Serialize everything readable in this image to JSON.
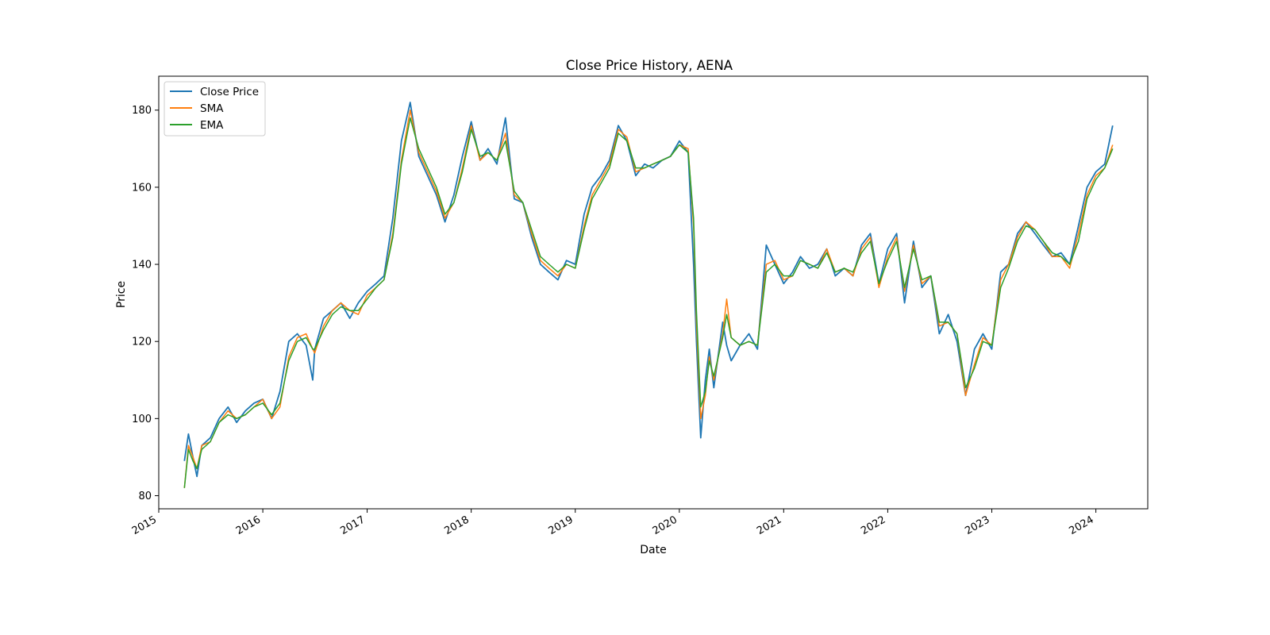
{
  "chart_data": {
    "type": "line",
    "title": "Close Price History, AENA",
    "xlabel": "Date",
    "ylabel": "Price",
    "x_ticks": [
      "2015",
      "2016",
      "2017",
      "2018",
      "2019",
      "2020",
      "2021",
      "2022",
      "2023",
      "2024"
    ],
    "y_ticks": [
      80,
      100,
      120,
      140,
      160,
      180
    ],
    "xlim": [
      "2015-01-01",
      "2024-07-01"
    ],
    "ylim": [
      76.6,
      188.8
    ],
    "legend_position": "top-left",
    "grid": false,
    "x": [
      "2015-04-01",
      "2015-04-15",
      "2015-05-01",
      "2015-05-15",
      "2015-06-01",
      "2015-07-01",
      "2015-08-01",
      "2015-09-01",
      "2015-10-01",
      "2015-11-01",
      "2015-12-01",
      "2016-01-01",
      "2016-02-01",
      "2016-03-01",
      "2016-04-01",
      "2016-05-01",
      "2016-06-01",
      "2016-06-24",
      "2016-07-01",
      "2016-08-01",
      "2016-09-01",
      "2016-10-01",
      "2016-11-01",
      "2016-12-01",
      "2017-01-01",
      "2017-02-01",
      "2017-03-01",
      "2017-04-01",
      "2017-05-01",
      "2017-06-01",
      "2017-07-01",
      "2017-08-01",
      "2017-09-01",
      "2017-10-01",
      "2017-11-01",
      "2017-12-01",
      "2018-01-01",
      "2018-02-01",
      "2018-03-01",
      "2018-04-01",
      "2018-05-01",
      "2018-06-01",
      "2018-07-01",
      "2018-08-01",
      "2018-09-01",
      "2018-10-01",
      "2018-11-01",
      "2018-12-01",
      "2019-01-01",
      "2019-02-01",
      "2019-03-01",
      "2019-04-01",
      "2019-05-01",
      "2019-06-01",
      "2019-07-01",
      "2019-08-01",
      "2019-09-01",
      "2019-10-01",
      "2019-11-01",
      "2019-12-01",
      "2020-01-01",
      "2020-02-01",
      "2020-02-20",
      "2020-03-01",
      "2020-03-16",
      "2020-04-01",
      "2020-04-15",
      "2020-05-01",
      "2020-06-01",
      "2020-06-15",
      "2020-07-01",
      "2020-08-01",
      "2020-09-01",
      "2020-10-01",
      "2020-11-01",
      "2020-12-01",
      "2021-01-01",
      "2021-02-01",
      "2021-03-01",
      "2021-04-01",
      "2021-05-01",
      "2021-06-01",
      "2021-07-01",
      "2021-08-01",
      "2021-09-01",
      "2021-10-01",
      "2021-11-01",
      "2021-12-01",
      "2022-01-01",
      "2022-02-01",
      "2022-03-01",
      "2022-04-01",
      "2022-05-01",
      "2022-06-01",
      "2022-07-01",
      "2022-08-01",
      "2022-09-01",
      "2022-10-01",
      "2022-11-01",
      "2022-12-01",
      "2023-01-01",
      "2023-02-01",
      "2023-03-01",
      "2023-04-01",
      "2023-05-01",
      "2023-06-01",
      "2023-07-01",
      "2023-08-01",
      "2023-09-01",
      "2023-10-01",
      "2023-11-01",
      "2023-12-01",
      "2024-01-01",
      "2024-02-01",
      "2024-02-29"
    ],
    "series": [
      {
        "name": "Close Price",
        "color": "#1f77b4",
        "values": [
          89,
          96,
          90,
          85,
          93,
          95,
          100,
          103,
          99,
          102,
          104,
          105,
          100,
          107,
          120,
          122,
          119,
          110,
          118,
          126,
          128,
          130,
          126,
          130,
          133,
          135,
          137,
          152,
          172,
          182,
          168,
          163,
          158,
          151,
          158,
          168,
          177,
          167,
          170,
          166,
          178,
          157,
          156,
          147,
          140,
          138,
          136,
          141,
          140,
          153,
          160,
          163,
          167,
          176,
          172,
          163,
          166,
          165,
          167,
          168,
          172,
          169,
          140,
          120,
          95,
          110,
          118,
          108,
          125,
          119,
          115,
          119,
          122,
          118,
          145,
          140,
          135,
          138,
          142,
          139,
          140,
          144,
          137,
          139,
          137,
          145,
          148,
          135,
          144,
          148,
          130,
          146,
          134,
          137,
          122,
          127,
          120,
          106,
          118,
          122,
          118,
          138,
          140,
          148,
          151,
          148,
          145,
          142,
          143,
          140,
          150,
          160,
          164,
          166,
          176
        ]
      },
      {
        "name": "SMA",
        "color": "#ff7f0e",
        "values": [
          82,
          93,
          90,
          87,
          93,
          94,
          99,
          102,
          100,
          101,
          103,
          105,
          100,
          103,
          116,
          121,
          122,
          118,
          117,
          124,
          128,
          130,
          128,
          127,
          132,
          134,
          136,
          148,
          167,
          180,
          169,
          164,
          159,
          152,
          156,
          165,
          176,
          167,
          169,
          167,
          174,
          158,
          156,
          148,
          141,
          139,
          137,
          140,
          139,
          150,
          158,
          162,
          166,
          175,
          173,
          164,
          165,
          166,
          167,
          168,
          171,
          170,
          150,
          125,
          100,
          106,
          116,
          110,
          122,
          131,
          121,
          119,
          120,
          119,
          140,
          141,
          136,
          137,
          141,
          140,
          139,
          144,
          138,
          139,
          137,
          144,
          147,
          134,
          142,
          147,
          133,
          145,
          135,
          137,
          124,
          125,
          122,
          106,
          114,
          121,
          119,
          136,
          140,
          147,
          151,
          149,
          146,
          142,
          142,
          139,
          148,
          158,
          163,
          165,
          171
        ]
      },
      {
        "name": "EMA",
        "color": "#2ca02c",
        "values": [
          82,
          92,
          89,
          87,
          92,
          94,
          99,
          101,
          100,
          101,
          103,
          104,
          101,
          104,
          115,
          120,
          121,
          118,
          118,
          123,
          127,
          129,
          128,
          128,
          131,
          134,
          136,
          147,
          166,
          178,
          170,
          165,
          160,
          153,
          156,
          164,
          175,
          168,
          169,
          167,
          172,
          159,
          156,
          149,
          142,
          140,
          138,
          140,
          139,
          149,
          157,
          161,
          165,
          174,
          172,
          165,
          165,
          166,
          167,
          168,
          171,
          169,
          152,
          128,
          103,
          107,
          115,
          111,
          121,
          127,
          121,
          119,
          120,
          119,
          138,
          140,
          137,
          137,
          141,
          140,
          139,
          143,
          138,
          139,
          138,
          143,
          146,
          135,
          141,
          146,
          134,
          144,
          136,
          137,
          125,
          125,
          122,
          108,
          113,
          120,
          119,
          134,
          139,
          146,
          150,
          149,
          146,
          143,
          142,
          140,
          146,
          157,
          162,
          165,
          170
        ]
      }
    ]
  }
}
